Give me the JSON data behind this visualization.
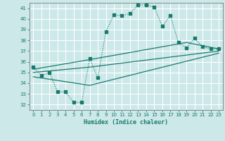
{
  "xlabel": "Humidex (Indice chaleur)",
  "background_color": "#cce8e8",
  "grid_color": "#ffffff",
  "line_color": "#1a7a6e",
  "xlim": [
    -0.5,
    23.5
  ],
  "ylim": [
    31.5,
    41.5
  ],
  "xticks": [
    0,
    1,
    2,
    3,
    4,
    5,
    6,
    7,
    8,
    9,
    10,
    11,
    12,
    13,
    14,
    15,
    16,
    17,
    18,
    19,
    20,
    21,
    22,
    23
  ],
  "yticks": [
    32,
    33,
    34,
    35,
    36,
    37,
    38,
    39,
    40,
    41
  ],
  "series1_x": [
    0,
    1,
    2,
    3,
    4,
    5,
    6,
    7,
    8,
    9,
    10,
    11,
    12,
    13,
    14,
    15,
    16,
    17,
    18,
    19,
    20,
    21,
    22,
    23
  ],
  "series1_y": [
    35.5,
    34.7,
    35.0,
    33.2,
    33.2,
    32.2,
    32.2,
    36.3,
    34.5,
    38.8,
    40.4,
    40.3,
    40.5,
    41.3,
    41.3,
    41.1,
    39.3,
    40.3,
    37.8,
    37.3,
    38.2,
    37.4,
    37.2,
    37.2
  ],
  "series2_x": [
    0,
    7,
    19,
    23
  ],
  "series2_y": [
    35.3,
    36.2,
    37.8,
    37.2
  ],
  "series3_x": [
    0,
    7,
    23
  ],
  "series3_y": [
    35.0,
    35.5,
    37.0
  ],
  "series4_x": [
    0,
    7,
    23
  ],
  "series4_y": [
    34.6,
    33.8,
    36.8
  ]
}
